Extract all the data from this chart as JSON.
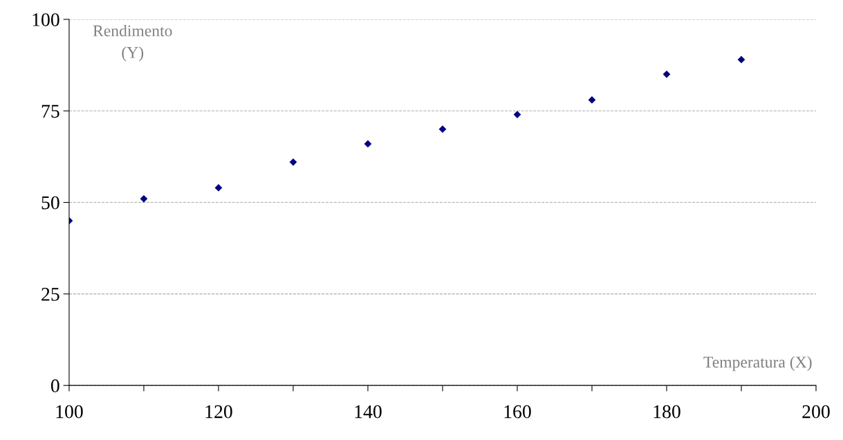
{
  "chart_data": {
    "type": "scatter",
    "x": [
      100,
      110,
      120,
      130,
      140,
      150,
      160,
      170,
      180,
      190
    ],
    "values": [
      45,
      51,
      54,
      61,
      66,
      70,
      74,
      78,
      85,
      89
    ],
    "color": "#000080",
    "marker": "diamond",
    "xlabel": "Temperatura (X)",
    "ylabel": "Rendimento\n(Y)",
    "xlim": [
      100,
      200
    ],
    "xticks": [
      100,
      {
        "value": 110,
        "label": null
      },
      120,
      {
        "value": 130,
        "label": null
      },
      140,
      {
        "value": 150,
        "label": null
      },
      160,
      {
        "value": 170,
        "label": null
      },
      180,
      {
        "value": 190,
        "label": null
      },
      200
    ],
    "ylim": [
      0,
      100
    ],
    "yticks": [
      0,
      25,
      50,
      75,
      100
    ],
    "grid": "y",
    "legend": false
  }
}
